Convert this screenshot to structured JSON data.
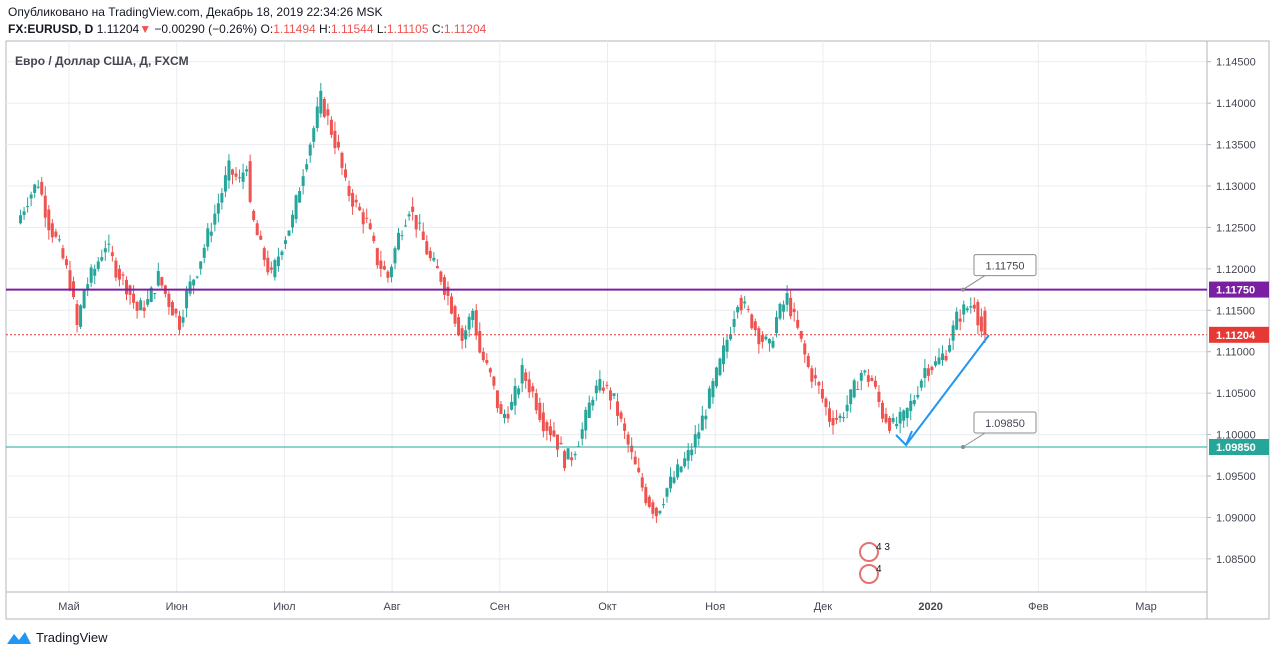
{
  "header": {
    "published": "Опубликовано на TradingView.com, Декабрь 18, 2019 22:34:26 MSK",
    "symbol": "FX:EURUSD, D",
    "last": "1.11204",
    "arrow": "▼",
    "change": "−0.00290 (−0.26%)",
    "o_label": "O:",
    "o_value": "1.11494",
    "h_label": "H:",
    "h_value": "1.11544",
    "l_label": "L:",
    "l_value": "1.11105",
    "c_label": "C:",
    "c_value": "1.11204"
  },
  "footer": {
    "brand": "TradingView"
  },
  "colors": {
    "up": "#26a69a",
    "down": "#ef5350",
    "resistance": "#7b1fa2",
    "support": "#26a69a",
    "price_line": "#e53935",
    "arrow": "#2196f3",
    "grid": "#e9ecf1"
  },
  "chart_data": {
    "type": "candlestick",
    "title": "Евро / Доллар США, Д, FXCM",
    "ylim": [
      1.081,
      1.1475
    ],
    "y_ticks": [
      "1.14500",
      "1.14000",
      "1.13500",
      "1.13000",
      "1.12500",
      "1.12000",
      "1.11500",
      "1.11000",
      "1.10500",
      "1.10000",
      "1.09500",
      "1.09000",
      "1.08500"
    ],
    "x_ticks": [
      {
        "label": "Май",
        "month": 4
      },
      {
        "label": "Июн",
        "month": 5
      },
      {
        "label": "Июл",
        "month": 6
      },
      {
        "label": "Авг",
        "month": 7
      },
      {
        "label": "Сен",
        "month": 8
      },
      {
        "label": "Окт",
        "month": 9
      },
      {
        "label": "Ноя",
        "month": 10
      },
      {
        "label": "Дек",
        "month": 11
      },
      {
        "label": "2020",
        "month": 12
      },
      {
        "label": "Фев",
        "month": 13
      },
      {
        "label": "Мар",
        "month": 14
      }
    ],
    "path": [
      [
        0,
        1.1255
      ],
      [
        3,
        1.1285
      ],
      [
        6,
        1.1305
      ],
      [
        9,
        1.1255
      ],
      [
        12,
        1.1225
      ],
      [
        15,
        1.1185
      ],
      [
        17,
        1.113
      ],
      [
        19,
        1.1175
      ],
      [
        22,
        1.12
      ],
      [
        25,
        1.123
      ],
      [
        28,
        1.12
      ],
      [
        31,
        1.118
      ],
      [
        34,
        1.115
      ],
      [
        37,
        1.116
      ],
      [
        40,
        1.119
      ],
      [
        43,
        1.116
      ],
      [
        46,
        1.1135
      ],
      [
        48,
        1.117
      ],
      [
        51,
        1.12
      ],
      [
        54,
        1.124
      ],
      [
        57,
        1.128
      ],
      [
        60,
        1.132
      ],
      [
        63,
        1.1305
      ],
      [
        65,
        1.133
      ],
      [
        66,
        1.127
      ],
      [
        69,
        1.1225
      ],
      [
        72,
        1.119
      ],
      [
        75,
        1.123
      ],
      [
        78,
        1.126
      ],
      [
        81,
        1.132
      ],
      [
        84,
        1.137
      ],
      [
        86,
        1.1405
      ],
      [
        88,
        1.138
      ],
      [
        91,
        1.134
      ],
      [
        93,
        1.13
      ],
      [
        96,
        1.1275
      ],
      [
        99,
        1.1255
      ],
      [
        102,
        1.121
      ],
      [
        105,
        1.119
      ],
      [
        108,
        1.124
      ],
      [
        111,
        1.1275
      ],
      [
        114,
        1.1245
      ],
      [
        117,
        1.121
      ],
      [
        120,
        1.119
      ],
      [
        123,
        1.1155
      ],
      [
        126,
        1.1115
      ],
      [
        129,
        1.115
      ],
      [
        131,
        1.11
      ],
      [
        134,
        1.107
      ],
      [
        137,
        1.102
      ],
      [
        140,
        1.1035
      ],
      [
        143,
        1.1075
      ],
      [
        146,
        1.105
      ],
      [
        149,
        1.1015
      ],
      [
        152,
        1.1
      ],
      [
        155,
        1.097
      ],
      [
        157,
        1.0975
      ],
      [
        160,
        1.1005
      ],
      [
        163,
        1.105
      ],
      [
        166,
        1.106
      ],
      [
        169,
        1.104
      ],
      [
        172,
        1.1
      ],
      [
        175,
        1.096
      ],
      [
        178,
        1.0925
      ],
      [
        181,
        1.0905
      ],
      [
        184,
        1.0935
      ],
      [
        187,
        1.0955
      ],
      [
        190,
        1.0975
      ],
      [
        193,
        1.1005
      ],
      [
        196,
        1.1045
      ],
      [
        199,
        1.1085
      ],
      [
        202,
        1.113
      ],
      [
        204,
        1.1165
      ],
      [
        207,
        1.1145
      ],
      [
        210,
        1.112
      ],
      [
        213,
        1.1105
      ],
      [
        215,
        1.114
      ],
      [
        218,
        1.1165
      ],
      [
        221,
        1.1125
      ],
      [
        224,
        1.108
      ],
      [
        227,
        1.1055
      ],
      [
        230,
        1.102
      ],
      [
        233,
        1.102
      ],
      [
        236,
        1.1045
      ],
      [
        239,
        1.1075
      ],
      [
        242,
        1.1065
      ],
      [
        245,
        1.1025
      ],
      [
        248,
        1.101
      ],
      [
        251,
        1.102
      ],
      [
        254,
        1.1045
      ],
      [
        257,
        1.108
      ],
      [
        260,
        1.1085
      ],
      [
        263,
        1.11
      ],
      [
        266,
        1.114
      ],
      [
        268,
        1.115
      ],
      [
        271,
        1.116
      ],
      [
        273,
        1.1125
      ]
    ],
    "start_month": 3.55,
    "step_per_day": 0.0328,
    "last": {
      "open": 1.11494,
      "high": 1.11544,
      "low": 1.11105,
      "close": 1.11204
    },
    "levels": [
      {
        "name": "resistance",
        "value": 1.1175,
        "label": "1.11750"
      },
      {
        "name": "support",
        "value": 1.0985,
        "label": "1.09850"
      }
    ],
    "price_label": "1.11204",
    "forecast": {
      "from": 1.112,
      "to": 1.0985
    },
    "event_badges": [
      "4 3",
      "4"
    ]
  }
}
